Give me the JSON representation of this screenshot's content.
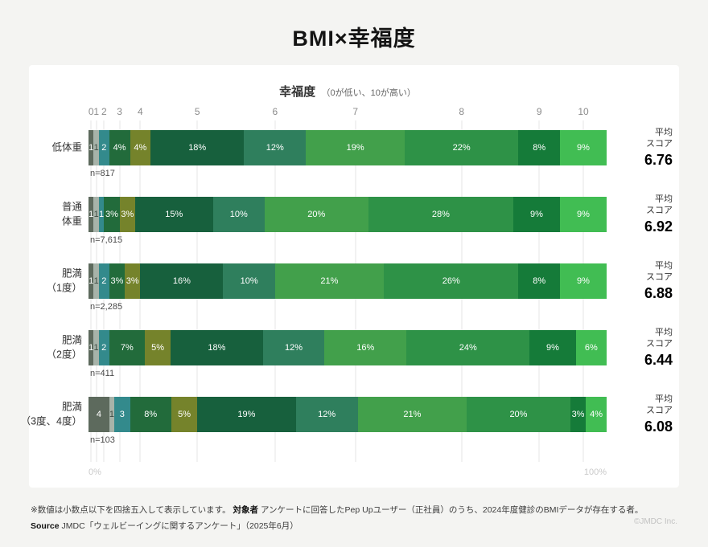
{
  "page": {
    "title": "BMI×幸福度",
    "copyright": "©JMDC Inc."
  },
  "chart_data": {
    "type": "bar",
    "stacked": true,
    "orientation": "horizontal",
    "title": "BMI×幸福度",
    "axis_title": "幸福度",
    "axis_subtitle": "（0が低い、10が高い）",
    "score_labels": [
      "0",
      "1",
      "2",
      "3",
      "4",
      "5",
      "6",
      "7",
      "8",
      "9",
      "10"
    ],
    "x_min_label": "0%",
    "x_max_label": "100%",
    "avg_label_lines": [
      "平均",
      "スコア"
    ],
    "palette": [
      "#5d6a5d",
      "#a7b3a9",
      "#338a8c",
      "#226b3b",
      "#75832b",
      "#17603d",
      "#2f7f5d",
      "#42a04b",
      "#2e9247",
      "#157b39",
      "#41bd53"
    ],
    "rows": [
      {
        "label_lines": [
          "低体重"
        ],
        "n": "n=817",
        "avg": "6.76",
        "values": [
          1,
          1,
          2,
          4,
          4,
          18,
          12,
          19,
          22,
          8,
          9
        ]
      },
      {
        "label_lines": [
          "普通",
          "体重"
        ],
        "n": "n=7,615",
        "avg": "6.92",
        "values": [
          1,
          1,
          1,
          3,
          3,
          15,
          10,
          20,
          28,
          9,
          9
        ]
      },
      {
        "label_lines": [
          "肥満",
          "（1度）"
        ],
        "n": "n=2,285",
        "avg": "6.88",
        "values": [
          1,
          1,
          2,
          3,
          3,
          16,
          10,
          21,
          26,
          8,
          9
        ]
      },
      {
        "label_lines": [
          "肥満",
          "（2度）"
        ],
        "n": "n=411",
        "avg": "6.44",
        "values": [
          1,
          1,
          2,
          7,
          5,
          18,
          12,
          16,
          24,
          9,
          6
        ]
      },
      {
        "label_lines": [
          "肥満",
          "（3度、4度）"
        ],
        "n": "n=103",
        "avg": "6.08",
        "values": [
          4,
          1,
          3,
          8,
          5,
          19,
          12,
          21,
          20,
          3,
          4
        ]
      }
    ]
  },
  "footer": {
    "note_prefix": "※数値は小数点以下を四捨五入して表示しています。",
    "note_bold": "対象者",
    "note_rest": "アンケートに回答したPep Upユーザー（正社員）のうち、2024年度健診のBMIデータが存在する者。",
    "source_bold": "Source",
    "source_rest": "JMDC「ウェルビーイングに関するアンケート」（2025年6月）"
  }
}
